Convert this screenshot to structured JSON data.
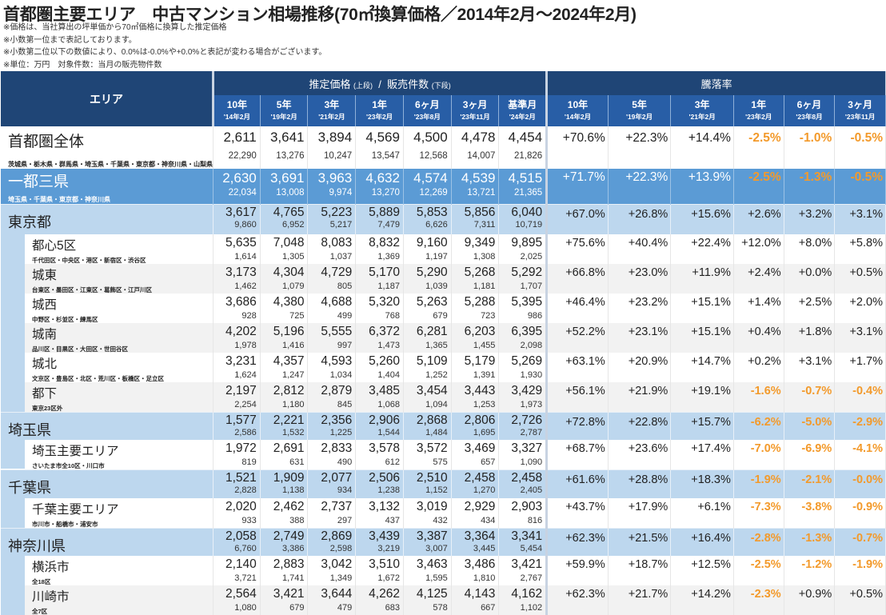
{
  "title": "首都圏主要エリア　中古マンション相場推移(70㎡換算価格／2014年2月～2024年2月)",
  "notes": [
    "※価格は、当社算出の坪単価から70㎡価格に換算した推定価格",
    "※小数第一位まで表記しております。",
    "※小数第二位以下の数値により、0.0%は-0.0%や+0.0%と表記が変わる場合がございます。",
    "※単位：万円　対象件数：当月の販売物件数"
  ],
  "header": {
    "area": "エリア",
    "price_group": "推定価格",
    "price_group_upper": "(上段)",
    "price_group_sep": "/",
    "count_group": "販売件数",
    "count_group_lower": "(下段)",
    "rate_group": "騰落率",
    "price_cols": [
      {
        "period": "10年",
        "date": "'14年2月"
      },
      {
        "period": "5年",
        "date": "'19年2月"
      },
      {
        "period": "3年",
        "date": "'21年2月"
      },
      {
        "period": "1年",
        "date": "'23年2月"
      },
      {
        "period": "6ヶ月",
        "date": "'23年8月"
      },
      {
        "period": "3ヶ月",
        "date": "'23年11月"
      },
      {
        "period": "基準月",
        "date": "'24年2月"
      }
    ],
    "rate_cols": [
      {
        "period": "10年",
        "date": "'14年2月"
      },
      {
        "period": "5年",
        "date": "'19年2月"
      },
      {
        "period": "3年",
        "date": "'21年2月"
      },
      {
        "period": "1年",
        "date": "'23年2月"
      },
      {
        "period": "6ヶ月",
        "date": "'23年8月"
      },
      {
        "period": "3ヶ月",
        "date": "'23年11月"
      }
    ]
  },
  "colors": {
    "header_dark": "#1f4576",
    "header_light": "#285ea6",
    "highlight": "#5b9bd5",
    "pref": "#bdd7ee",
    "negative": "#f39a2b"
  },
  "rows": [
    {
      "type": "total",
      "name": "首都圏全体",
      "sub": "茨城県・栃木県・群馬県・埼玉県・千葉県・東京都・神奈川県・山梨県",
      "prices": [
        "2,611",
        "3,641",
        "3,894",
        "4,569",
        "4,500",
        "4,478",
        "4,454"
      ],
      "counts": [
        "22,290",
        "13,276",
        "10,247",
        "13,547",
        "12,568",
        "14,007",
        "21,826"
      ],
      "rates": [
        "+70.6%",
        "+22.3%",
        "+14.4%",
        "-2.5%",
        "-1.0%",
        "-0.5%"
      ]
    },
    {
      "type": "hl",
      "name": "一都三県",
      "sub": "埼玉県・千葉県・東京都・神奈川県",
      "prices": [
        "2,630",
        "3,691",
        "3,963",
        "4,632",
        "4,574",
        "4,539",
        "4,515"
      ],
      "counts": [
        "22,034",
        "13,008",
        "9,974",
        "13,270",
        "12,269",
        "13,721",
        "21,365"
      ],
      "rates": [
        "+71.7%",
        "+22.3%",
        "+13.9%",
        "-2.5%",
        "-1.3%",
        "-0.5%"
      ]
    },
    {
      "type": "pref",
      "name": "東京都",
      "prices": [
        "3,617",
        "4,765",
        "5,223",
        "5,889",
        "5,853",
        "5,856",
        "6,040"
      ],
      "counts": [
        "9,860",
        "6,952",
        "5,217",
        "7,479",
        "6,626",
        "7,311",
        "10,719"
      ],
      "rates": [
        "+67.0%",
        "+26.8%",
        "+15.6%",
        "+2.6%",
        "+3.2%",
        "+3.1%"
      ]
    },
    {
      "type": "sub",
      "name": "都心5区",
      "sub": "千代田区・中央区・港区・新宿区・渋谷区",
      "prices": [
        "5,635",
        "7,048",
        "8,083",
        "8,832",
        "9,160",
        "9,349",
        "9,895"
      ],
      "counts": [
        "1,614",
        "1,305",
        "1,037",
        "1,369",
        "1,197",
        "1,308",
        "2,025"
      ],
      "rates": [
        "+75.6%",
        "+40.4%",
        "+22.4%",
        "+12.0%",
        "+8.0%",
        "+5.8%"
      ]
    },
    {
      "type": "sub",
      "name": "城東",
      "sub": "台東区・墨田区・江東区・葛飾区・江戸川区",
      "prices": [
        "3,173",
        "4,304",
        "4,729",
        "5,170",
        "5,290",
        "5,268",
        "5,292"
      ],
      "counts": [
        "1,462",
        "1,079",
        "805",
        "1,187",
        "1,039",
        "1,181",
        "1,707"
      ],
      "rates": [
        "+66.8%",
        "+23.0%",
        "+11.9%",
        "+2.4%",
        "+0.0%",
        "+0.5%"
      ]
    },
    {
      "type": "sub",
      "name": "城西",
      "sub": "中野区・杉並区・練馬区",
      "prices": [
        "3,686",
        "4,380",
        "4,688",
        "5,320",
        "5,263",
        "5,288",
        "5,395"
      ],
      "counts": [
        "928",
        "725",
        "499",
        "768",
        "679",
        "723",
        "986"
      ],
      "rates": [
        "+46.4%",
        "+23.2%",
        "+15.1%",
        "+1.4%",
        "+2.5%",
        "+2.0%"
      ]
    },
    {
      "type": "sub",
      "name": "城南",
      "sub": "品川区・目黒区・大田区・世田谷区",
      "prices": [
        "4,202",
        "5,196",
        "5,555",
        "6,372",
        "6,281",
        "6,203",
        "6,395"
      ],
      "counts": [
        "1,978",
        "1,416",
        "997",
        "1,473",
        "1,365",
        "1,455",
        "2,098"
      ],
      "rates": [
        "+52.2%",
        "+23.1%",
        "+15.1%",
        "+0.4%",
        "+1.8%",
        "+3.1%"
      ]
    },
    {
      "type": "sub",
      "name": "城北",
      "sub": "文京区・豊島区・北区・荒川区・板橋区・足立区",
      "prices": [
        "3,231",
        "4,357",
        "4,593",
        "5,260",
        "5,109",
        "5,179",
        "5,269"
      ],
      "counts": [
        "1,624",
        "1,247",
        "1,034",
        "1,404",
        "1,252",
        "1,391",
        "1,930"
      ],
      "rates": [
        "+63.1%",
        "+20.9%",
        "+14.7%",
        "+0.2%",
        "+3.1%",
        "+1.7%"
      ]
    },
    {
      "type": "sub",
      "name": "都下",
      "sub": "東京23区外",
      "prices": [
        "2,197",
        "2,812",
        "2,879",
        "3,485",
        "3,454",
        "3,443",
        "3,429"
      ],
      "counts": [
        "2,254",
        "1,180",
        "845",
        "1,068",
        "1,094",
        "1,253",
        "1,973"
      ],
      "rates": [
        "+56.1%",
        "+21.9%",
        "+19.1%",
        "-1.6%",
        "-0.7%",
        "-0.4%"
      ]
    },
    {
      "type": "pref",
      "name": "埼玉県",
      "prices": [
        "1,577",
        "2,221",
        "2,356",
        "2,906",
        "2,868",
        "2,806",
        "2,726"
      ],
      "counts": [
        "2,586",
        "1,532",
        "1,225",
        "1,544",
        "1,484",
        "1,695",
        "2,787"
      ],
      "rates": [
        "+72.8%",
        "+22.8%",
        "+15.7%",
        "-6.2%",
        "-5.0%",
        "-2.9%"
      ]
    },
    {
      "type": "sub",
      "name": "埼玉主要エリア",
      "sub": "さいたま市全10区・川口市",
      "prices": [
        "1,972",
        "2,691",
        "2,833",
        "3,578",
        "3,572",
        "3,469",
        "3,327"
      ],
      "counts": [
        "819",
        "631",
        "490",
        "612",
        "575",
        "657",
        "1,090"
      ],
      "rates": [
        "+68.7%",
        "+23.6%",
        "+17.4%",
        "-7.0%",
        "-6.9%",
        "-4.1%"
      ]
    },
    {
      "type": "pref",
      "name": "千葉県",
      "prices": [
        "1,521",
        "1,909",
        "2,077",
        "2,506",
        "2,510",
        "2,458",
        "2,458"
      ],
      "counts": [
        "2,828",
        "1,138",
        "934",
        "1,238",
        "1,152",
        "1,270",
        "2,405"
      ],
      "rates": [
        "+61.6%",
        "+28.8%",
        "+18.3%",
        "-1.9%",
        "-2.1%",
        "-0.0%"
      ]
    },
    {
      "type": "sub",
      "name": "千葉主要エリア",
      "sub": "市川市・船橋市・浦安市",
      "prices": [
        "2,020",
        "2,462",
        "2,737",
        "3,132",
        "3,019",
        "2,929",
        "2,903"
      ],
      "counts": [
        "933",
        "388",
        "297",
        "437",
        "432",
        "434",
        "816"
      ],
      "rates": [
        "+43.7%",
        "+17.9%",
        "+6.1%",
        "-7.3%",
        "-3.8%",
        "-0.9%"
      ]
    },
    {
      "type": "pref",
      "name": "神奈川県",
      "prices": [
        "2,058",
        "2,749",
        "2,869",
        "3,439",
        "3,387",
        "3,364",
        "3,341"
      ],
      "counts": [
        "6,760",
        "3,386",
        "2,598",
        "3,219",
        "3,007",
        "3,445",
        "5,454"
      ],
      "rates": [
        "+62.3%",
        "+21.5%",
        "+16.4%",
        "-2.8%",
        "-1.3%",
        "-0.7%"
      ]
    },
    {
      "type": "sub",
      "name": "横浜市",
      "sub": "全18区",
      "prices": [
        "2,140",
        "2,883",
        "3,042",
        "3,510",
        "3,463",
        "3,486",
        "3,421"
      ],
      "counts": [
        "3,721",
        "1,741",
        "1,349",
        "1,672",
        "1,595",
        "1,810",
        "2,767"
      ],
      "rates": [
        "+59.9%",
        "+18.7%",
        "+12.5%",
        "-2.5%",
        "-1.2%",
        "-1.9%"
      ]
    },
    {
      "type": "sub",
      "name": "川崎市",
      "sub": "全7区",
      "prices": [
        "2,564",
        "3,421",
        "3,644",
        "4,262",
        "4,125",
        "4,143",
        "4,162"
      ],
      "counts": [
        "1,080",
        "679",
        "479",
        "683",
        "578",
        "667",
        "1,102"
      ],
      "rates": [
        "+62.3%",
        "+21.7%",
        "+14.2%",
        "-2.3%",
        "+0.9%",
        "+0.5%"
      ]
    }
  ]
}
